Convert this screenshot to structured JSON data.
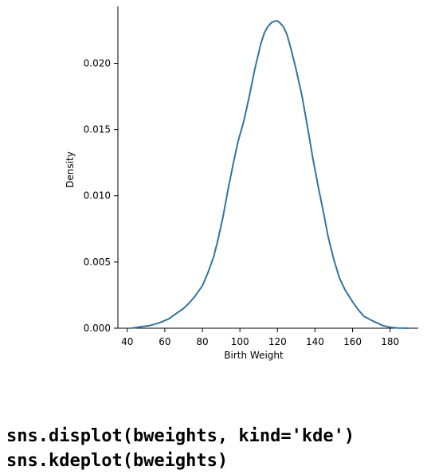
{
  "chart_data": {
    "type": "line",
    "title": "",
    "xlabel": "Birth Weight",
    "ylabel": "Density",
    "xlim": [
      35,
      195
    ],
    "ylim": [
      0,
      0.0243
    ],
    "xticks": [
      40,
      60,
      80,
      100,
      120,
      140,
      160,
      180
    ],
    "yticks": [
      0.0,
      0.005,
      0.01,
      0.015,
      0.02
    ],
    "ytick_labels": [
      "0.000",
      "0.005",
      "0.010",
      "0.015",
      "0.020"
    ],
    "grid": false,
    "line_color": "#3274a1",
    "series": [
      {
        "x": [
          42,
          47,
          52,
          57,
          62,
          66,
          70,
          73,
          76,
          80,
          83,
          86,
          88,
          91,
          94,
          97,
          99,
          102,
          105,
          108,
          111,
          113,
          115,
          117,
          119,
          120,
          121,
          123,
          125,
          127,
          130,
          133,
          136,
          139,
          142,
          145,
          147,
          150,
          153,
          156,
          160,
          163,
          166,
          170,
          173,
          176,
          180,
          184,
          190
        ],
        "values": [
          0.0,
          0.0001,
          0.0002,
          0.0004,
          0.0007,
          0.0011,
          0.0015,
          0.0019,
          0.0024,
          0.0032,
          0.0042,
          0.0054,
          0.0065,
          0.0084,
          0.0107,
          0.0128,
          0.0141,
          0.0156,
          0.0175,
          0.0196,
          0.0214,
          0.0223,
          0.0228,
          0.0231,
          0.0232,
          0.0232,
          0.0231,
          0.0228,
          0.0222,
          0.0212,
          0.0195,
          0.0176,
          0.0152,
          0.0127,
          0.0105,
          0.0084,
          0.0069,
          0.0052,
          0.0038,
          0.0029,
          0.002,
          0.0014,
          0.0009,
          0.0006,
          0.0004,
          0.0002,
          8e-05,
          2e-05,
          0.0
        ]
      }
    ]
  },
  "code": {
    "line1": "sns.displot(bweights, kind='kde')",
    "line2": "sns.kdeplot(bweights)"
  }
}
